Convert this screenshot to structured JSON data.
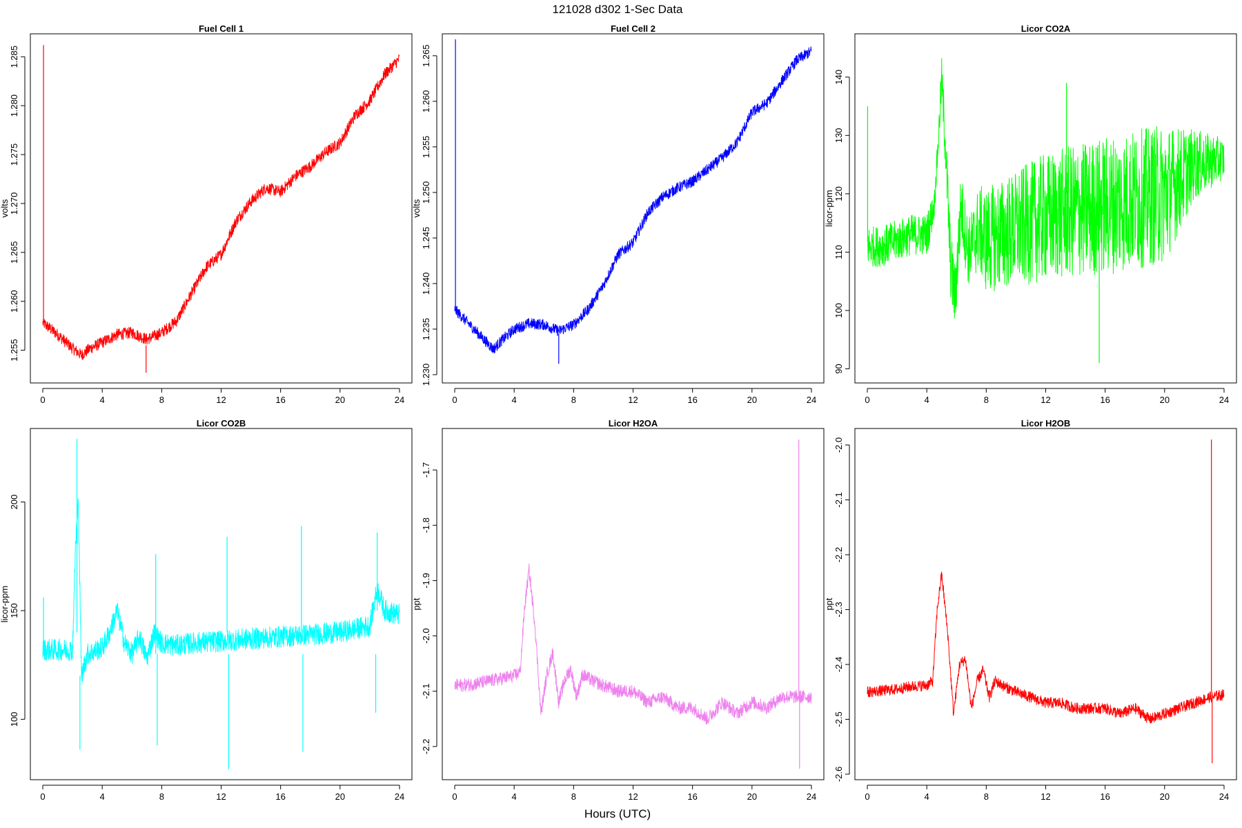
{
  "figure": {
    "title": "121028   d302   1-Sec Data",
    "xlabel": "Hours (UTC)"
  },
  "chart_data": [
    {
      "type": "line",
      "title": "Fuel Cell 1",
      "ylabel": "volts",
      "color": "#ff0000",
      "xlim": [
        0,
        24
      ],
      "ylim": [
        1.2525,
        1.2865
      ],
      "x_ticks": [
        0,
        4,
        8,
        12,
        16,
        20,
        24
      ],
      "y_ticks": [
        1.255,
        1.26,
        1.265,
        1.27,
        1.275,
        1.28,
        1.285
      ],
      "y_tick_labels": [
        "1.255",
        "1.260",
        "1.265",
        "1.270",
        "1.275",
        "1.280",
        "1.285"
      ],
      "noise": 0.0006,
      "x": [
        0,
        0.1,
        1,
        2,
        2.6,
        3.2,
        4,
        5,
        6,
        7,
        8,
        9,
        10,
        11,
        12,
        13,
        14,
        15,
        16,
        17,
        18,
        19,
        20,
        21,
        22,
        23,
        24
      ],
      "y": [
        1.2578,
        1.2577,
        1.2566,
        1.2552,
        1.2545,
        1.2552,
        1.2558,
        1.2566,
        1.2568,
        1.2561,
        1.2568,
        1.258,
        1.2608,
        1.2635,
        1.2648,
        1.2682,
        1.2702,
        1.2716,
        1.2712,
        1.2728,
        1.2738,
        1.2752,
        1.2762,
        1.279,
        1.2805,
        1.2832,
        1.2848
      ],
      "spikes": [
        {
          "x": 0.05,
          "y0": 1.2578,
          "y1": 1.2862
        },
        {
          "x": 6.95,
          "y0": 1.2555,
          "y1": 1.2527
        }
      ]
    },
    {
      "type": "line",
      "title": "Fuel Cell 2",
      "ylabel": "volts",
      "color": "#0000ff",
      "xlim": [
        0,
        24
      ],
      "ylim": [
        1.23,
        1.2665
      ],
      "x_ticks": [
        0,
        4,
        8,
        12,
        16,
        20,
        24
      ],
      "y_ticks": [
        1.23,
        1.235,
        1.24,
        1.245,
        1.25,
        1.255,
        1.26,
        1.265
      ],
      "y_tick_labels": [
        "1.230",
        "1.235",
        "1.240",
        "1.245",
        "1.250",
        "1.255",
        "1.260",
        "1.265"
      ],
      "noise": 0.0006,
      "x": [
        0,
        0.1,
        1,
        2,
        2.6,
        3.2,
        4,
        5,
        6,
        7,
        8,
        9,
        10,
        11,
        12,
        13,
        14,
        15,
        16,
        17,
        18,
        19,
        20,
        21,
        22,
        23,
        24
      ],
      "y": [
        1.2372,
        1.237,
        1.2355,
        1.2338,
        1.2328,
        1.2338,
        1.235,
        1.2356,
        1.2355,
        1.2348,
        1.2355,
        1.2372,
        1.2398,
        1.2432,
        1.2445,
        1.2478,
        1.2495,
        1.2505,
        1.2512,
        1.2525,
        1.2538,
        1.2555,
        1.2588,
        1.2598,
        1.2622,
        1.2645,
        1.2655
      ],
      "spikes": [
        {
          "x": 0.05,
          "y0": 1.237,
          "y1": 1.2668
        },
        {
          "x": 7.0,
          "y0": 1.2345,
          "y1": 1.2312
        }
      ]
    },
    {
      "type": "line",
      "title": "Licor CO2A",
      "ylabel": "licor-ppm",
      "color": "#00ff00",
      "xlim": [
        0,
        24
      ],
      "ylim": [
        89,
        146
      ],
      "x_ticks": [
        0,
        4,
        8,
        12,
        16,
        20,
        24
      ],
      "y_ticks": [
        90,
        100,
        110,
        120,
        130,
        140
      ],
      "y_tick_labels": [
        "90",
        "100",
        "110",
        "120",
        "130",
        "140"
      ],
      "noise": 3.5,
      "x": [
        0,
        1,
        2,
        3,
        4,
        4.5,
        4.8,
        5.0,
        5.3,
        5.6,
        5.9,
        6.3,
        6.8,
        7.5,
        8,
        10,
        12,
        14,
        16,
        18,
        20,
        22,
        24
      ],
      "y": [
        111,
        111,
        112,
        113,
        113,
        118,
        130,
        140,
        126,
        108,
        102,
        118,
        110,
        114,
        112,
        114,
        116,
        117,
        118,
        119,
        120,
        125,
        126
      ],
      "noise_x": [
        0,
        4.2,
        4.6,
        5.6,
        7,
        8,
        12,
        16,
        20,
        22,
        24
      ],
      "noise_amp": [
        3.5,
        3.5,
        2,
        6,
        6,
        9,
        11,
        12,
        12,
        6,
        3.5
      ],
      "spikes": [
        {
          "x": 0.02,
          "y0": 112,
          "y1": 135
        },
        {
          "x": 15.6,
          "y0": 110,
          "y1": 91
        },
        {
          "x": 13.4,
          "y0": 120,
          "y1": 139
        }
      ]
    },
    {
      "type": "line",
      "title": "Licor CO2B",
      "ylabel": "licor-ppm",
      "color": "#00ffff",
      "xlim": [
        0,
        24
      ],
      "ylim": [
        76,
        230
      ],
      "x_ticks": [
        0,
        4,
        8,
        12,
        16,
        20,
        24
      ],
      "y_ticks": [
        100,
        150,
        200
      ],
      "y_tick_labels": [
        "100",
        "150",
        "200"
      ],
      "noise": 5,
      "x": [
        0,
        1,
        2,
        2.2,
        2.4,
        2.6,
        3,
        4,
        4.5,
        5,
        5.5,
        6,
        6.5,
        7,
        7.5,
        8,
        9,
        10,
        12,
        14,
        16,
        18,
        20,
        22,
        22.5,
        23,
        24
      ],
      "y": [
        132,
        132,
        132,
        180,
        200,
        120,
        130,
        133,
        140,
        150,
        135,
        130,
        138,
        128,
        140,
        135,
        134,
        135,
        136,
        137,
        138,
        139,
        140,
        143,
        160,
        150,
        148
      ],
      "spikes": [
        {
          "x": 0.05,
          "y0": 132,
          "y1": 156
        },
        {
          "x": 2.3,
          "y0": 140,
          "y1": 229
        },
        {
          "x": 2.5,
          "y0": 120,
          "y1": 86
        },
        {
          "x": 7.6,
          "y0": 130,
          "y1": 176
        },
        {
          "x": 7.7,
          "y0": 130,
          "y1": 88
        },
        {
          "x": 12.4,
          "y0": 140,
          "y1": 184
        },
        {
          "x": 12.5,
          "y0": 130,
          "y1": 77
        },
        {
          "x": 17.4,
          "y0": 140,
          "y1": 189
        },
        {
          "x": 17.5,
          "y0": 130,
          "y1": 85
        },
        {
          "x": 22.5,
          "y0": 150,
          "y1": 186
        },
        {
          "x": 22.4,
          "y0": 130,
          "y1": 103
        }
      ]
    },
    {
      "type": "line",
      "title": "Licor H2OA",
      "ylabel": "ppt",
      "color": "#ee82ee",
      "xlim": [
        0,
        24
      ],
      "ylim": [
        -2.245,
        -1.64
      ],
      "x_ticks": [
        0,
        4,
        8,
        12,
        16,
        20,
        24
      ],
      "y_ticks": [
        -2.2,
        -2.1,
        -2.0,
        -1.9,
        -1.8,
        -1.7
      ],
      "y_tick_labels": [
        "-2.2",
        "-2.1",
        "-2.0",
        "-1.9",
        "-1.8",
        "-1.7"
      ],
      "noise": 0.012,
      "x": [
        0,
        1,
        2,
        3,
        4,
        4.4,
        4.7,
        5.0,
        5.4,
        5.8,
        6.2,
        6.6,
        7.0,
        7.4,
        7.8,
        8.2,
        8.6,
        9.2,
        10,
        11,
        12,
        13,
        14,
        15,
        16,
        17,
        18,
        19,
        20,
        21,
        22,
        23,
        24
      ],
      "y": [
        -2.09,
        -2.088,
        -2.083,
        -2.078,
        -2.072,
        -2.065,
        -1.95,
        -1.88,
        -1.98,
        -2.14,
        -2.07,
        -2.03,
        -2.12,
        -2.08,
        -2.06,
        -2.11,
        -2.07,
        -2.08,
        -2.09,
        -2.1,
        -2.1,
        -2.12,
        -2.11,
        -2.13,
        -2.13,
        -2.15,
        -2.12,
        -2.14,
        -2.12,
        -2.13,
        -2.11,
        -2.11,
        -2.11
      ],
      "spikes": [
        {
          "x": 23.15,
          "y0": -2.11,
          "y1": -1.645
        },
        {
          "x": 23.2,
          "y0": -2.12,
          "y1": -2.24
        }
      ]
    },
    {
      "type": "line",
      "title": "Licor H2OB",
      "ylabel": "ppt",
      "color": "#ff0000",
      "xlim": [
        0,
        24
      ],
      "ylim": [
        -2.595,
        -1.985
      ],
      "x_ticks": [
        0,
        4,
        8,
        12,
        16,
        20,
        24
      ],
      "y_ticks": [
        -2.6,
        -2.5,
        -2.4,
        -2.3,
        -2.2,
        -2.1,
        -2.0
      ],
      "y_tick_labels": [
        "-2.6",
        "-2.5",
        "-2.4",
        "-2.3",
        "-2.2",
        "-2.1",
        "-2.0"
      ],
      "noise": 0.01,
      "x": [
        0,
        1,
        2,
        3,
        4,
        4.4,
        4.7,
        5.0,
        5.4,
        5.8,
        6.2,
        6.6,
        7.0,
        7.4,
        7.8,
        8.2,
        8.6,
        9.2,
        10,
        11,
        12,
        13,
        14,
        15,
        16,
        17,
        18,
        19,
        20,
        21,
        22,
        23,
        24
      ],
      "y": [
        -2.45,
        -2.448,
        -2.445,
        -2.44,
        -2.438,
        -2.43,
        -2.3,
        -2.235,
        -2.34,
        -2.49,
        -2.4,
        -2.39,
        -2.48,
        -2.43,
        -2.41,
        -2.46,
        -2.43,
        -2.44,
        -2.45,
        -2.46,
        -2.47,
        -2.47,
        -2.48,
        -2.48,
        -2.48,
        -2.49,
        -2.48,
        -2.5,
        -2.49,
        -2.48,
        -2.47,
        -2.46,
        -2.455
      ],
      "spikes": [
        {
          "x": 23.15,
          "y0": -2.45,
          "y1": -1.99
        },
        {
          "x": 23.2,
          "y0": -2.46,
          "y1": -2.58
        }
      ]
    }
  ]
}
